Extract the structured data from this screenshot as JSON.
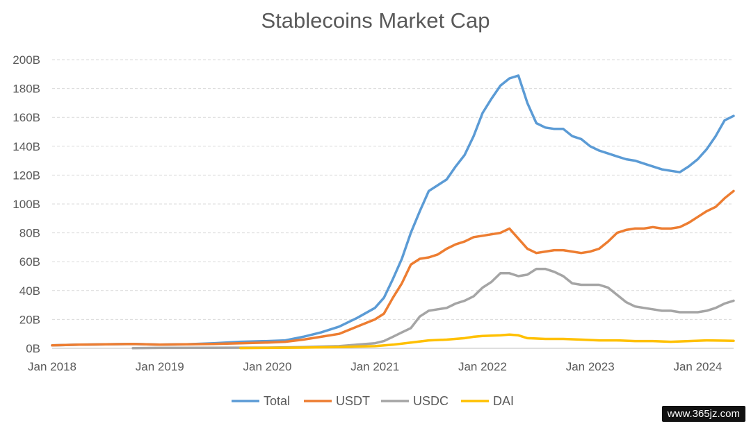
{
  "watermark": "www.365jz.com",
  "chart_data": {
    "type": "line",
    "title": "Stablecoins Market Cap",
    "xlabel": "",
    "ylabel": "",
    "ylim": [
      0,
      200
    ],
    "y_unit": "B",
    "yticks": [
      "0B",
      "20B",
      "40B",
      "60B",
      "80B",
      "100B",
      "120B",
      "140B",
      "160B",
      "180B",
      "200B"
    ],
    "xlim": [
      "2018-01",
      "2024-05"
    ],
    "xticks": [
      "Jan 2018",
      "Jan 2019",
      "Jan 2020",
      "Jan 2021",
      "Jan 2022",
      "Jan 2023",
      "Jan 2024"
    ],
    "grid": true,
    "legend_position": "bottom",
    "series": [
      {
        "name": "Total",
        "color": "#5b9bd5",
        "x": [
          "2018-01",
          "2018-04",
          "2018-07",
          "2018-10",
          "2019-01",
          "2019-04",
          "2019-07",
          "2019-10",
          "2020-01",
          "2020-03",
          "2020-05",
          "2020-07",
          "2020-09",
          "2020-11",
          "2021-01",
          "2021-02",
          "2021-03",
          "2021-04",
          "2021-05",
          "2021-06",
          "2021-07",
          "2021-08",
          "2021-09",
          "2021-10",
          "2021-11",
          "2021-12",
          "2022-01",
          "2022-02",
          "2022-03",
          "2022-04",
          "2022-05",
          "2022-06",
          "2022-07",
          "2022-08",
          "2022-09",
          "2022-10",
          "2022-11",
          "2022-12",
          "2023-01",
          "2023-02",
          "2023-03",
          "2023-04",
          "2023-05",
          "2023-06",
          "2023-07",
          "2023-08",
          "2023-09",
          "2023-10",
          "2023-11",
          "2023-12",
          "2024-01",
          "2024-02",
          "2024-03",
          "2024-04",
          "2024-05"
        ],
        "values": [
          2,
          2.5,
          2.8,
          3,
          2.5,
          2.8,
          3.5,
          4.5,
          5,
          5.5,
          8,
          11,
          15,
          21,
          28,
          35,
          48,
          62,
          80,
          95,
          109,
          113,
          117,
          126,
          134,
          147,
          163,
          173,
          182,
          187,
          189,
          170,
          156,
          153,
          152,
          152,
          147,
          145,
          140,
          137,
          135,
          133,
          131,
          130,
          128,
          126,
          124,
          123,
          122,
          126,
          131,
          138,
          147,
          158,
          161
        ]
      },
      {
        "name": "USDT",
        "color": "#ed7d31",
        "x": [
          "2018-01",
          "2018-04",
          "2018-07",
          "2018-10",
          "2019-01",
          "2019-04",
          "2019-07",
          "2019-10",
          "2020-01",
          "2020-03",
          "2020-05",
          "2020-07",
          "2020-09",
          "2020-11",
          "2021-01",
          "2021-02",
          "2021-03",
          "2021-04",
          "2021-05",
          "2021-06",
          "2021-07",
          "2021-08",
          "2021-09",
          "2021-10",
          "2021-11",
          "2021-12",
          "2022-01",
          "2022-02",
          "2022-03",
          "2022-04",
          "2022-05",
          "2022-06",
          "2022-07",
          "2022-08",
          "2022-09",
          "2022-10",
          "2022-11",
          "2022-12",
          "2023-01",
          "2023-02",
          "2023-03",
          "2023-04",
          "2023-05",
          "2023-06",
          "2023-07",
          "2023-08",
          "2023-09",
          "2023-10",
          "2023-11",
          "2023-12",
          "2024-01",
          "2024-02",
          "2024-03",
          "2024-04",
          "2024-05"
        ],
        "values": [
          2,
          2.5,
          2.8,
          3,
          2.5,
          2.8,
          3,
          3.5,
          4,
          4.5,
          6,
          8,
          10,
          15,
          20,
          24,
          35,
          45,
          58,
          62,
          63,
          65,
          69,
          72,
          74,
          77,
          78,
          79,
          80,
          83,
          76,
          69,
          66,
          67,
          68,
          68,
          67,
          66,
          67,
          69,
          74,
          80,
          82,
          83,
          83,
          84,
          83,
          83,
          84,
          87,
          91,
          95,
          98,
          104,
          109
        ]
      },
      {
        "name": "USDC",
        "color": "#a5a5a5",
        "x": [
          "2018-10",
          "2019-01",
          "2019-07",
          "2020-01",
          "2020-05",
          "2020-09",
          "2020-11",
          "2021-01",
          "2021-02",
          "2021-03",
          "2021-04",
          "2021-05",
          "2021-06",
          "2021-07",
          "2021-08",
          "2021-09",
          "2021-10",
          "2021-11",
          "2021-12",
          "2022-01",
          "2022-02",
          "2022-03",
          "2022-04",
          "2022-05",
          "2022-06",
          "2022-07",
          "2022-08",
          "2022-09",
          "2022-10",
          "2022-11",
          "2022-12",
          "2023-01",
          "2023-02",
          "2023-03",
          "2023-04",
          "2023-05",
          "2023-06",
          "2023-07",
          "2023-08",
          "2023-09",
          "2023-10",
          "2023-11",
          "2023-12",
          "2024-01",
          "2024-02",
          "2024-03",
          "2024-04",
          "2024-05"
        ],
        "values": [
          0.1,
          0.3,
          0.4,
          0.5,
          0.8,
          1.5,
          2.5,
          3.5,
          5,
          8,
          11,
          14,
          22,
          26,
          27,
          28,
          31,
          33,
          36,
          42,
          46,
          52,
          52,
          50,
          51,
          55,
          55,
          53,
          50,
          45,
          44,
          44,
          44,
          42,
          37,
          32,
          29,
          28,
          27,
          26,
          26,
          25,
          25,
          25,
          26,
          28,
          31,
          33
        ]
      },
      {
        "name": "DAI",
        "color": "#ffc000",
        "x": [
          "2019-10",
          "2020-01",
          "2020-05",
          "2020-09",
          "2020-11",
          "2021-01",
          "2021-03",
          "2021-05",
          "2021-07",
          "2021-09",
          "2021-11",
          "2021-12",
          "2022-01",
          "2022-03",
          "2022-04",
          "2022-05",
          "2022-06",
          "2022-08",
          "2022-10",
          "2022-12",
          "2023-02",
          "2023-04",
          "2023-06",
          "2023-08",
          "2023-10",
          "2023-12",
          "2024-02",
          "2024-04",
          "2024-05"
        ],
        "values": [
          0.2,
          0.3,
          0.5,
          0.8,
          1.2,
          1.5,
          2.5,
          4,
          5.5,
          6,
          7,
          8,
          8.5,
          9,
          9.5,
          9,
          7,
          6.5,
          6.5,
          6,
          5.5,
          5.5,
          5,
          5,
          4.5,
          5,
          5.5,
          5.3,
          5.2
        ]
      }
    ]
  }
}
